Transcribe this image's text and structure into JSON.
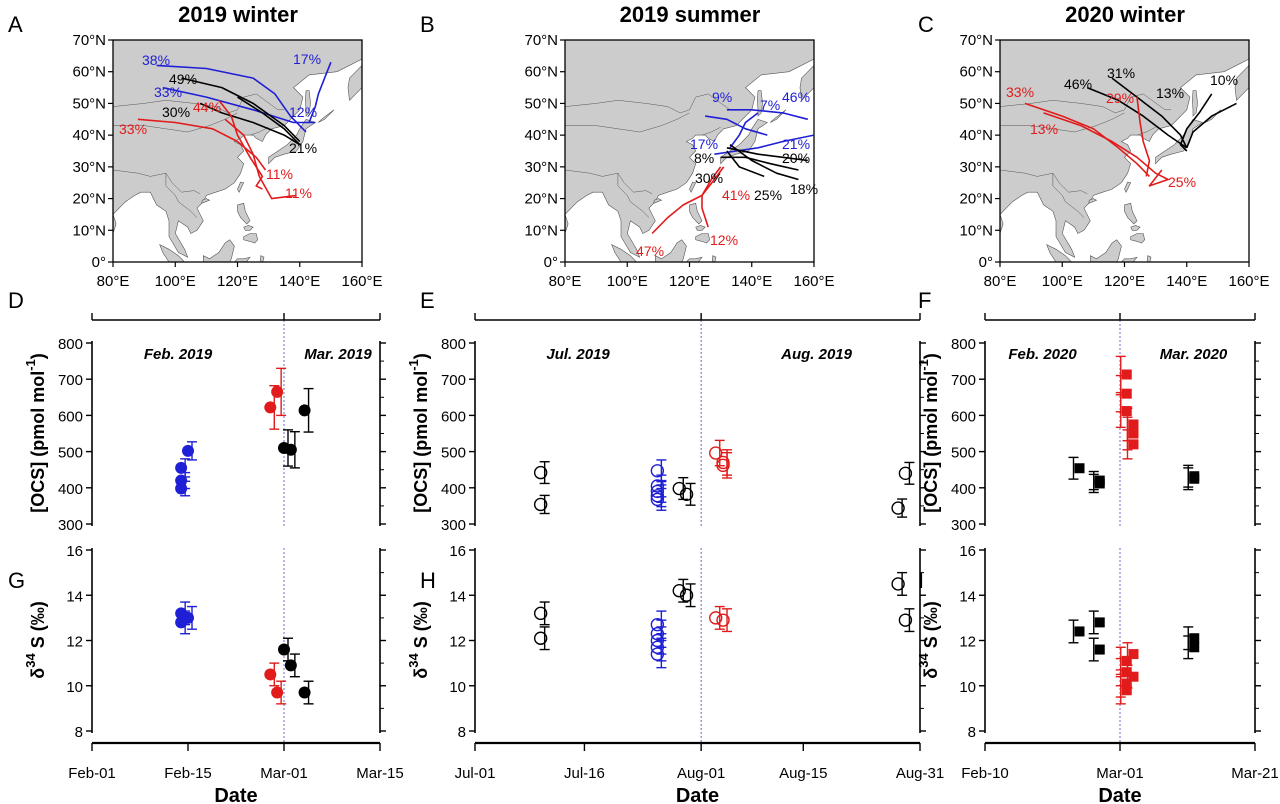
{
  "panel_letters": {
    "A": "A",
    "B": "B",
    "C": "C",
    "D": "D",
    "E": "E",
    "F": "F",
    "G": "G",
    "H": "H",
    "I": "I"
  },
  "maps": [
    {
      "letter": "A",
      "title": "2019 winter",
      "lat_ticks": [
        "70°N",
        "60°N",
        "50°N",
        "40°N",
        "30°N",
        "20°N",
        "10°N",
        "0°"
      ],
      "lon_ticks": [
        "80°E",
        "100°E",
        "120°E",
        "140°E",
        "160°E"
      ],
      "labels": [
        {
          "text": "38%",
          "color": "#1f1fd6"
        },
        {
          "text": "17%",
          "color": "#1f1fd6"
        },
        {
          "text": "49%",
          "color": "#000000"
        },
        {
          "text": "33%",
          "color": "#1f1fd6"
        },
        {
          "text": "44%",
          "color": "#e11b1b"
        },
        {
          "text": "30%",
          "color": "#000000"
        },
        {
          "text": "12%",
          "color": "#1f1fd6"
        },
        {
          "text": "33%",
          "color": "#e11b1b"
        },
        {
          "text": "21%",
          "color": "#000000"
        },
        {
          "text": "11%",
          "color": "#e11b1b"
        },
        {
          "text": "11%",
          "color": "#e11b1b"
        }
      ]
    },
    {
      "letter": "B",
      "title": "2019 summer",
      "lat_ticks": [
        "70°N",
        "60°N",
        "50°N",
        "40°N",
        "30°N",
        "20°N",
        "10°N",
        "0°"
      ],
      "lon_ticks": [
        "80°E",
        "100°E",
        "120°E",
        "140°E",
        "160°E"
      ],
      "labels": [
        {
          "text": "9%",
          "color": "#1f1fd6"
        },
        {
          "text": "7%",
          "color": "#1f1fd6"
        },
        {
          "text": "46%",
          "color": "#1f1fd6"
        },
        {
          "text": "17%",
          "color": "#1f1fd6"
        },
        {
          "text": "21%",
          "color": "#1f1fd6"
        },
        {
          "text": "8%",
          "color": "#000000"
        },
        {
          "text": "20%",
          "color": "#000000"
        },
        {
          "text": "30%",
          "color": "#000000"
        },
        {
          "text": "18%",
          "color": "#000000"
        },
        {
          "text": "41%",
          "color": "#e11b1b"
        },
        {
          "text": "25%",
          "color": "#000000"
        },
        {
          "text": "47%",
          "color": "#e11b1b"
        },
        {
          "text": "12%",
          "color": "#e11b1b"
        }
      ]
    },
    {
      "letter": "C",
      "title": "2020 winter",
      "lat_ticks": [
        "70°N",
        "60°N",
        "50°N",
        "40°N",
        "30°N",
        "20°N",
        "10°N",
        "0°"
      ],
      "lon_ticks": [
        "80°E",
        "100°E",
        "120°E",
        "140°E",
        "160°E"
      ],
      "labels": [
        {
          "text": "31%",
          "color": "#000000"
        },
        {
          "text": "46%",
          "color": "#000000"
        },
        {
          "text": "10%",
          "color": "#000000"
        },
        {
          "text": "33%",
          "color": "#e11b1b"
        },
        {
          "text": "29%",
          "color": "#e11b1b"
        },
        {
          "text": "13%",
          "color": "#000000"
        },
        {
          "text": "13%",
          "color": "#e11b1b"
        },
        {
          "text": "25%",
          "color": "#e11b1b"
        }
      ]
    }
  ],
  "axis_labels": {
    "ocs": "[OCS] (pmol mol",
    "ocs_sup": "-1",
    "ocs_close": ")",
    "d34s_delta": "δ",
    "d34s_sup": "34",
    "d34s_rest": "S (‰)",
    "x": "Date"
  },
  "colors": {
    "blue": "#1f1fd6",
    "red": "#e11b1b",
    "black": "#000000",
    "land": "#cccccc",
    "divider": "#6b6bd6"
  },
  "chart_data": [
    {
      "panel": "D",
      "type": "scatter",
      "ylabel": "[OCS] (pmol mol-1)",
      "ylim": [
        300,
        800
      ],
      "yticks": [
        300,
        400,
        500,
        600,
        700,
        800
      ],
      "marker": "filled-circle",
      "xlim": [
        "2019-02-01",
        "2019-03-15"
      ],
      "month_labels": [
        "Feb. 2019",
        "Mar. 2019"
      ],
      "divider": "2019-03-01",
      "points": [
        {
          "x": "2019-02-14",
          "y": 455,
          "err": 25,
          "color": "blue"
        },
        {
          "x": "2019-02-14",
          "y": 420,
          "err": 22,
          "color": "blue"
        },
        {
          "x": "2019-02-14",
          "y": 398,
          "err": 20,
          "color": "blue"
        },
        {
          "x": "2019-02-15",
          "y": 502,
          "err": 25,
          "color": "blue"
        },
        {
          "x": "2019-02-27",
          "y": 622,
          "err": 60,
          "color": "red"
        },
        {
          "x": "2019-02-28",
          "y": 665,
          "err": 65,
          "color": "red"
        },
        {
          "x": "2019-03-01",
          "y": 510,
          "err": 50,
          "color": "black"
        },
        {
          "x": "2019-03-02",
          "y": 505,
          "err": 50,
          "color": "black"
        },
        {
          "x": "2019-03-04",
          "y": 614,
          "err": 60,
          "color": "black"
        }
      ]
    },
    {
      "panel": "G",
      "type": "scatter",
      "xlabel": "Date",
      "ylabel": "δ34S (‰)",
      "ylim": [
        8,
        16
      ],
      "yticks": [
        8,
        10,
        12,
        14,
        16
      ],
      "marker": "filled-circle",
      "xlim": [
        "2019-02-01",
        "2019-03-15"
      ],
      "xticks": [
        "Feb-01",
        "Feb-15",
        "Mar-01",
        "Mar-15"
      ],
      "divider": "2019-03-01",
      "points": [
        {
          "x": "2019-02-14",
          "y": 13.2,
          "err": 0.5,
          "color": "blue"
        },
        {
          "x": "2019-02-14",
          "y": 12.8,
          "err": 0.5,
          "color": "blue"
        },
        {
          "x": "2019-02-15",
          "y": 13.0,
          "err": 0.5,
          "color": "blue"
        },
        {
          "x": "2019-02-27",
          "y": 10.5,
          "err": 0.5,
          "color": "red"
        },
        {
          "x": "2019-02-28",
          "y": 9.7,
          "err": 0.5,
          "color": "red"
        },
        {
          "x": "2019-03-01",
          "y": 11.6,
          "err": 0.5,
          "color": "black"
        },
        {
          "x": "2019-03-02",
          "y": 10.9,
          "err": 0.5,
          "color": "black"
        },
        {
          "x": "2019-03-04",
          "y": 9.7,
          "err": 0.5,
          "color": "black"
        }
      ]
    },
    {
      "panel": "E",
      "type": "scatter",
      "ylabel": "[OCS] (pmol mol-1)",
      "ylim": [
        300,
        800
      ],
      "yticks": [
        300,
        400,
        500,
        600,
        700,
        800
      ],
      "marker": "open-circle",
      "xlim": [
        "2019-07-01",
        "2019-08-31"
      ],
      "month_labels": [
        "Jul. 2019",
        "Aug. 2019"
      ],
      "divider": "2019-08-01",
      "points": [
        {
          "x": "2019-07-10",
          "y": 442,
          "err": 30,
          "color": "black"
        },
        {
          "x": "2019-07-10",
          "y": 354,
          "err": 25,
          "color": "black"
        },
        {
          "x": "2019-07-26",
          "y": 447,
          "err": 30,
          "color": "blue"
        },
        {
          "x": "2019-07-26",
          "y": 405,
          "err": 30,
          "color": "blue"
        },
        {
          "x": "2019-07-26",
          "y": 390,
          "err": 30,
          "color": "blue"
        },
        {
          "x": "2019-07-26",
          "y": 378,
          "err": 30,
          "color": "blue"
        },
        {
          "x": "2019-07-26",
          "y": 368,
          "err": 30,
          "color": "blue"
        },
        {
          "x": "2019-07-29",
          "y": 398,
          "err": 30,
          "color": "black"
        },
        {
          "x": "2019-07-30",
          "y": 382,
          "err": 30,
          "color": "black"
        },
        {
          "x": "2019-08-03",
          "y": 496,
          "err": 35,
          "color": "red"
        },
        {
          "x": "2019-08-04",
          "y": 470,
          "err": 35,
          "color": "red"
        },
        {
          "x": "2019-08-04",
          "y": 462,
          "err": 35,
          "color": "red"
        },
        {
          "x": "2019-08-28",
          "y": 344,
          "err": 25,
          "color": "black"
        },
        {
          "x": "2019-08-29",
          "y": 440,
          "err": 30,
          "color": "black"
        }
      ]
    },
    {
      "panel": "H",
      "type": "scatter",
      "xlabel": "Date",
      "ylabel": "δ34S (‰)",
      "ylim": [
        8,
        16
      ],
      "yticks": [
        8,
        10,
        12,
        14,
        16
      ],
      "marker": "open-circle",
      "xlim": [
        "2019-07-01",
        "2019-08-31"
      ],
      "xticks": [
        "Jul-01",
        "Jul-16",
        "Aug-01",
        "Aug-15",
        "Aug-31"
      ],
      "divider": "2019-08-01",
      "points": [
        {
          "x": "2019-07-10",
          "y": 13.2,
          "err": 0.5,
          "color": "black"
        },
        {
          "x": "2019-07-10",
          "y": 12.1,
          "err": 0.5,
          "color": "black"
        },
        {
          "x": "2019-07-26",
          "y": 12.7,
          "err": 0.6,
          "color": "blue"
        },
        {
          "x": "2019-07-26",
          "y": 12.3,
          "err": 0.6,
          "color": "blue"
        },
        {
          "x": "2019-07-26",
          "y": 12.0,
          "err": 0.6,
          "color": "blue"
        },
        {
          "x": "2019-07-26",
          "y": 11.7,
          "err": 0.6,
          "color": "blue"
        },
        {
          "x": "2019-07-26",
          "y": 11.4,
          "err": 0.6,
          "color": "blue"
        },
        {
          "x": "2019-07-29",
          "y": 14.2,
          "err": 0.5,
          "color": "black"
        },
        {
          "x": "2019-07-30",
          "y": 14.0,
          "err": 0.5,
          "color": "black"
        },
        {
          "x": "2019-08-03",
          "y": 13.0,
          "err": 0.5,
          "color": "red"
        },
        {
          "x": "2019-08-04",
          "y": 12.9,
          "err": 0.5,
          "color": "red"
        },
        {
          "x": "2019-08-28",
          "y": 14.5,
          "err": 0.5,
          "color": "black"
        },
        {
          "x": "2019-08-29",
          "y": 12.9,
          "err": 0.5,
          "color": "black"
        }
      ]
    },
    {
      "panel": "F",
      "type": "scatter",
      "ylabel": "[OCS] (pmol mol-1)",
      "ylim": [
        300,
        800
      ],
      "yticks": [
        300,
        400,
        500,
        600,
        700,
        800
      ],
      "marker": "filled-square",
      "xlim": [
        "2020-02-10",
        "2020-03-21"
      ],
      "month_labels": [
        "Feb. 2020",
        "Mar. 2020"
      ],
      "divider": "2020-03-01",
      "points": [
        {
          "x": "2020-02-24",
          "y": 454,
          "err": 30,
          "color": "black"
        },
        {
          "x": "2020-02-27",
          "y": 420,
          "err": 25,
          "color": "black"
        },
        {
          "x": "2020-02-27",
          "y": 412,
          "err": 25,
          "color": "black"
        },
        {
          "x": "2020-03-02",
          "y": 713,
          "err": 50,
          "color": "red"
        },
        {
          "x": "2020-03-02",
          "y": 660,
          "err": 50,
          "color": "red"
        },
        {
          "x": "2020-03-02",
          "y": 612,
          "err": 45,
          "color": "red"
        },
        {
          "x": "2020-03-03",
          "y": 575,
          "err": 45,
          "color": "red"
        },
        {
          "x": "2020-03-03",
          "y": 550,
          "err": 45,
          "color": "red"
        },
        {
          "x": "2020-03-03",
          "y": 520,
          "err": 40,
          "color": "red"
        },
        {
          "x": "2020-03-12",
          "y": 432,
          "err": 30,
          "color": "black"
        },
        {
          "x": "2020-03-12",
          "y": 425,
          "err": 30,
          "color": "black"
        }
      ]
    },
    {
      "panel": "I",
      "type": "scatter",
      "xlabel": "Date",
      "ylabel": "δ34S (‰)",
      "ylim": [
        8,
        16
      ],
      "yticks": [
        8,
        10,
        12,
        14,
        16
      ],
      "marker": "filled-square",
      "xlim": [
        "2020-02-10",
        "2020-03-21"
      ],
      "xticks": [
        "Feb-10",
        "Mar-01",
        "Mar-21"
      ],
      "divider": "2020-03-01",
      "points": [
        {
          "x": "2020-02-24",
          "y": 12.4,
          "err": 0.5,
          "color": "black"
        },
        {
          "x": "2020-02-27",
          "y": 12.8,
          "err": 0.5,
          "color": "black"
        },
        {
          "x": "2020-02-27",
          "y": 11.6,
          "err": 0.5,
          "color": "black"
        },
        {
          "x": "2020-03-02",
          "y": 11.1,
          "err": 0.6,
          "color": "red"
        },
        {
          "x": "2020-03-02",
          "y": 10.6,
          "err": 0.6,
          "color": "red"
        },
        {
          "x": "2020-03-02",
          "y": 10.1,
          "err": 0.6,
          "color": "red"
        },
        {
          "x": "2020-03-02",
          "y": 9.8,
          "err": 0.6,
          "color": "red"
        },
        {
          "x": "2020-03-03",
          "y": 11.4,
          "err": 0.5,
          "color": "red"
        },
        {
          "x": "2020-03-03",
          "y": 10.4,
          "err": 0.5,
          "color": "red"
        },
        {
          "x": "2020-03-12",
          "y": 12.1,
          "err": 0.5,
          "color": "black"
        },
        {
          "x": "2020-03-12",
          "y": 11.7,
          "err": 0.5,
          "color": "black"
        }
      ]
    }
  ]
}
